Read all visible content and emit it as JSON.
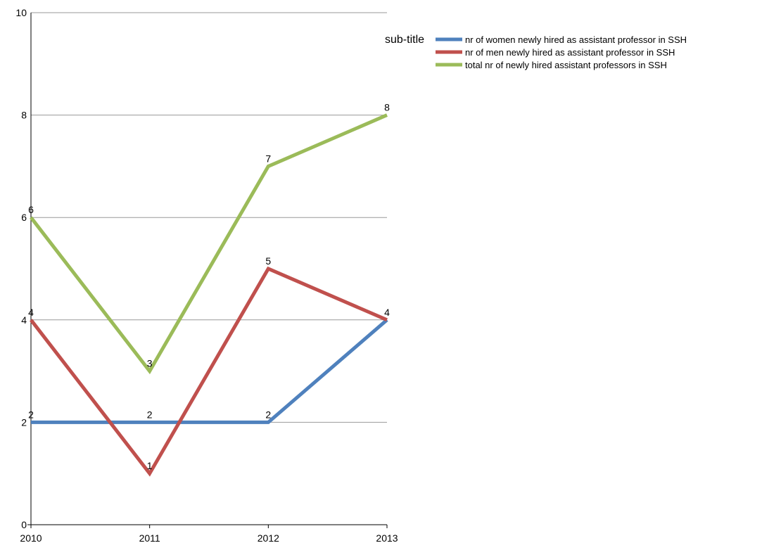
{
  "chart_data": {
    "type": "line",
    "categories": [
      "2010",
      "2011",
      "2012",
      "2013"
    ],
    "ylim": [
      0,
      10
    ],
    "y_ticks": [
      "0",
      "2",
      "4",
      "6",
      "8",
      "10"
    ],
    "grid": true,
    "legend_placement": "top-right",
    "legend_title": "sub-title",
    "series": [
      {
        "name": "nr of women newly hired as assistant professor in SSH",
        "values": [
          2,
          2,
          2,
          4
        ],
        "color": "#4f81bd"
      },
      {
        "name": "nr of men newly hired as assistant professor in SSH",
        "values": [
          4,
          1,
          5,
          4
        ],
        "color": "#c0504d"
      },
      {
        "name": "total nr of newly hired assistant professors in SSH",
        "values": [
          6,
          3,
          7,
          8
        ],
        "color": "#9bbb59"
      }
    ],
    "data_labels": [
      [
        "2",
        "2",
        "2",
        "4"
      ],
      [
        "4",
        "1",
        "5",
        ""
      ],
      [
        "6",
        "3",
        "7",
        "8"
      ]
    ]
  }
}
